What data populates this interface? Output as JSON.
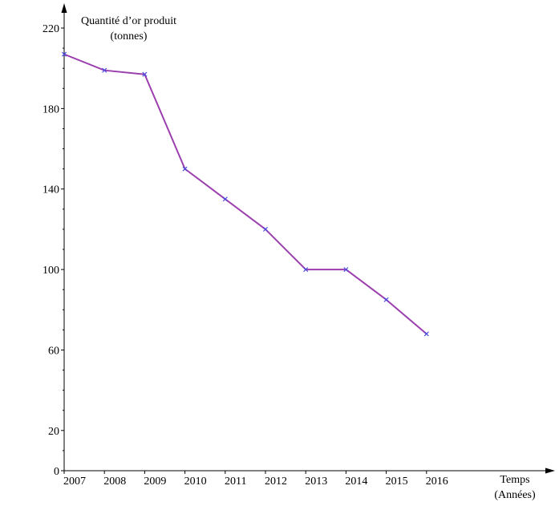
{
  "chart_data": {
    "type": "line",
    "title": "",
    "ylabel_line1": "Quantité d’or produit",
    "ylabel_line2": "(tonnes)",
    "xlabel_line1": "Temps",
    "xlabel_line2": "(Années)",
    "categories": [
      "2007",
      "2008",
      "2009",
      "2010",
      "2011",
      "2012",
      "2013",
      "2014",
      "2015",
      "2016"
    ],
    "series": [
      {
        "values": [
          207,
          199,
          197,
          150,
          135,
          120,
          100,
          100,
          85,
          68
        ]
      }
    ],
    "y_ticks": [
      0,
      20,
      60,
      100,
      140,
      180,
      220
    ],
    "ylim": [
      0,
      220
    ],
    "line_color": "#9b3fae",
    "marker_color": "#4a4adf",
    "grid": false,
    "legend": "none"
  }
}
